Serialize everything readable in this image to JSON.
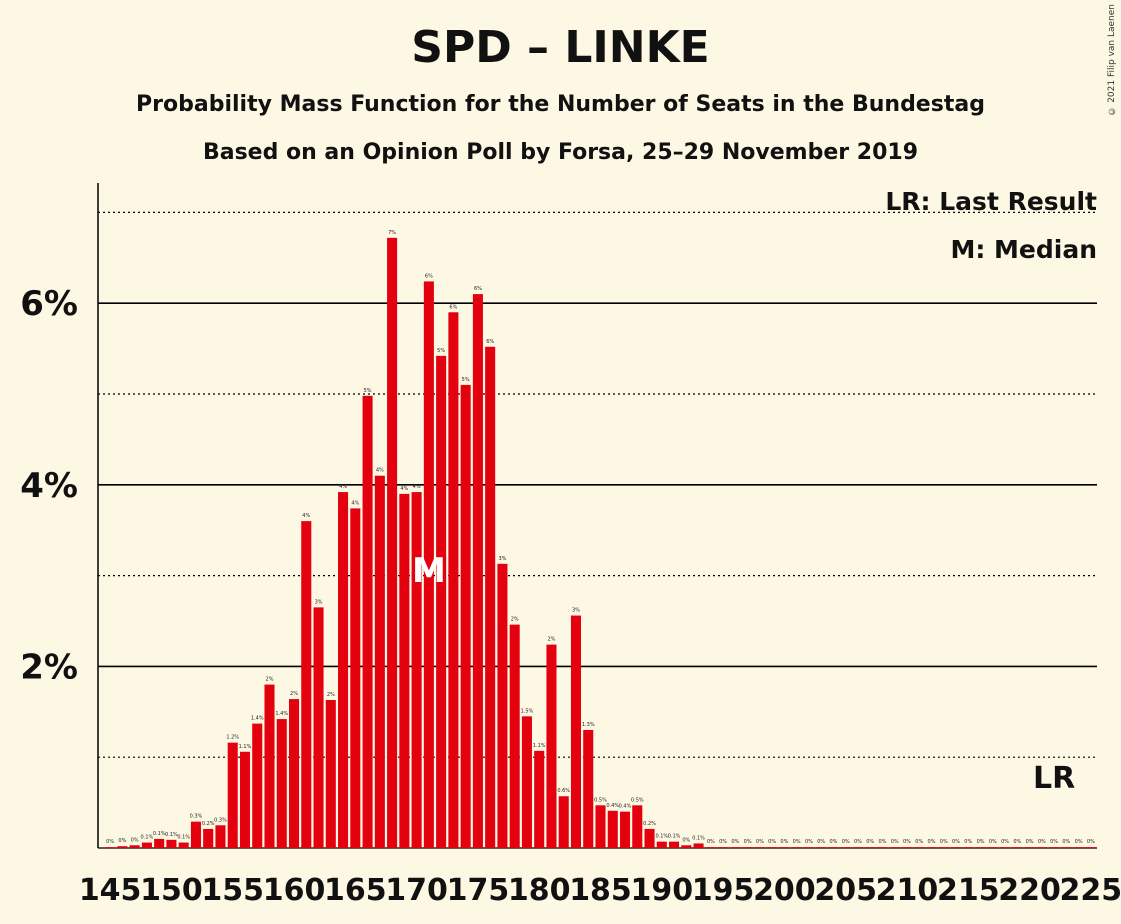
{
  "chart_data": {
    "type": "bar",
    "title": "SPD – LINKE",
    "subtitle": "Probability Mass Function for the Number of Seats in the Bundestag",
    "subtitle2": "Based on an Opinion Poll by Forsa, 25–29 November 2019",
    "copyright": "© 2021 Filip van Laenen",
    "legend": [
      "LR: Last Result",
      "M: Median"
    ],
    "x_start": 145,
    "x_end": 225,
    "x_tick_labels": [
      "145",
      "150",
      "155",
      "160",
      "165",
      "170",
      "175",
      "180",
      "185",
      "190",
      "195",
      "200",
      "205",
      "210",
      "215",
      "220",
      "225"
    ],
    "y_tick_labels": [
      "2%",
      "4%",
      "6%"
    ],
    "ylim": [
      0,
      7.3
    ],
    "values": [
      0.01,
      0.02,
      0.03,
      0.06,
      0.1,
      0.09,
      0.06,
      0.29,
      0.21,
      0.25,
      1.16,
      1.06,
      1.37,
      1.8,
      1.42,
      1.64,
      3.6,
      2.65,
      1.63,
      3.92,
      3.74,
      4.98,
      4.1,
      6.72,
      3.9,
      3.92,
      6.24,
      5.42,
      5.9,
      5.1,
      6.1,
      5.52,
      3.13,
      2.46,
      1.45,
      1.07,
      2.24,
      0.57,
      2.56,
      1.3,
      0.47,
      0.41,
      0.4,
      0.47,
      0.21,
      0.07,
      0.07,
      0.03,
      0.05,
      0.01,
      0.01,
      0.01,
      0.01,
      0.01,
      0.01,
      0.01,
      0.01,
      0.01,
      0.01,
      0.01,
      0.01,
      0.01,
      0.01,
      0.01,
      0.01,
      0.01,
      0.01,
      0.01,
      0.01,
      0.01,
      0.01,
      0.01,
      0.01,
      0.01,
      0.01,
      0.01,
      0.01,
      0.01,
      0.01,
      0.01,
      0.01
    ],
    "value_labels": [
      "0%",
      "0%",
      "0%",
      "0.1%",
      "0.1%",
      "0.1%",
      "0.1%",
      "0.3%",
      "0.2%",
      "0.3%",
      "1.2%",
      "1.1%",
      "1.4%",
      "2%",
      "1.4%",
      "2%",
      "4%",
      "3%",
      "2%",
      "4%",
      "4%",
      "5%",
      "4%",
      "7%",
      "4%",
      "4%",
      "6%",
      "5%",
      "6%",
      "5%",
      "6%",
      "6%",
      "3%",
      "2%",
      "1.5%",
      "1.1%",
      "2%",
      "0.6%",
      "3%",
      "1.3%",
      "0.5%",
      "0.4%",
      "0.4%",
      "0.5%",
      "0.2%",
      "0.1%",
      "0.1%",
      "0%",
      "0.1%",
      "0%",
      "0%",
      "0%",
      "0%",
      "0%",
      "0%",
      "0%",
      "0%",
      "0%",
      "0%",
      "0%",
      "0%",
      "0%",
      "0%",
      "0%",
      "0%",
      "0%",
      "0%",
      "0%",
      "0%",
      "0%",
      "0%",
      "0%",
      "0%",
      "0%",
      "0%",
      "0%",
      "0%",
      "0%",
      "0%",
      "0%",
      "0%"
    ],
    "median_seat": 171,
    "median_marker": "M",
    "last_result_seat": 222,
    "last_result_marker": "LR",
    "bar_color": "#e3000f",
    "grid": true
  }
}
